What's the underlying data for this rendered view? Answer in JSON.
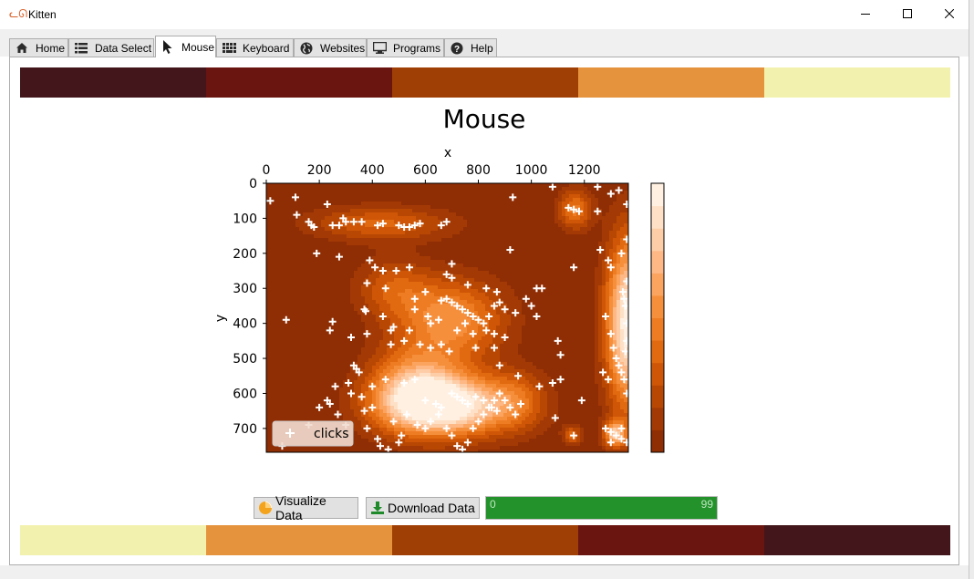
{
  "window": {
    "title": "Kitten",
    "minimize_label": "minimize",
    "maximize_label": "maximize",
    "close_label": "close"
  },
  "tabs": [
    {
      "label": "Home",
      "icon": "home-icon",
      "active": false
    },
    {
      "label": "Data Select",
      "icon": "list-icon",
      "active": false
    },
    {
      "label": "Mouse",
      "icon": "cursor-icon",
      "active": true
    },
    {
      "label": "Keyboard",
      "icon": "keyboard-icon",
      "active": false
    },
    {
      "label": "Websites",
      "icon": "globe-icon",
      "active": false
    },
    {
      "label": "Programs",
      "icon": "monitor-icon",
      "active": false
    },
    {
      "label": "Help",
      "icon": "help-icon",
      "active": false
    }
  ],
  "palette": {
    "top": [
      "#42161a",
      "#6b1510",
      "#a03f05",
      "#e5933d",
      "#f2f2ae"
    ],
    "bottom": [
      "#f2f2ae",
      "#e5933d",
      "#a03f05",
      "#6b1510",
      "#42161a"
    ]
  },
  "chart_data": {
    "type": "scatter",
    "title": "Mouse",
    "xlabel": "x",
    "ylabel": "y",
    "x_axis_position": "top",
    "y_axis_inverted": true,
    "xlim": [
      0,
      1366
    ],
    "ylim": [
      768,
      0
    ],
    "xticks": [
      0,
      200,
      400,
      600,
      800,
      1000,
      1200
    ],
    "yticks": [
      0,
      100,
      200,
      300,
      400,
      500,
      600,
      700
    ],
    "legend": {
      "label": "clicks",
      "placement": "bottom-left"
    },
    "background": "kde-density",
    "colorbar": true,
    "colormap": [
      "#8f2d04",
      "#a33a05",
      "#b84704",
      "#cf5606",
      "#e1690f",
      "#ee7c23",
      "#f68f3c",
      "#fba45f",
      "#fdb886",
      "#fdcda8",
      "#fee0c6",
      "#fff0e2"
    ],
    "density_peaks": [
      {
        "x": 680,
        "y": 635,
        "weight": 1.0,
        "spread_x": 170,
        "spread_y": 60
      },
      {
        "x": 560,
        "y": 580,
        "weight": 0.55,
        "spread_x": 120,
        "spread_y": 80
      },
      {
        "x": 1366,
        "y": 400,
        "weight": 1.0,
        "spread_x": 60,
        "spread_y": 170
      },
      {
        "x": 700,
        "y": 390,
        "weight": 0.55,
        "spread_x": 140,
        "spread_y": 80
      },
      {
        "x": 430,
        "y": 115,
        "weight": 0.35,
        "spread_x": 190,
        "spread_y": 35
      },
      {
        "x": 1165,
        "y": 75,
        "weight": 0.45,
        "spread_x": 45,
        "spread_y": 40
      },
      {
        "x": 1315,
        "y": 715,
        "weight": 0.7,
        "spread_x": 30,
        "spread_y": 25
      },
      {
        "x": 1155,
        "y": 720,
        "weight": 0.35,
        "spread_x": 25,
        "spread_y": 20
      },
      {
        "x": 950,
        "y": 620,
        "weight": 0.25,
        "spread_x": 80,
        "spread_y": 60
      },
      {
        "x": 480,
        "y": 300,
        "weight": 0.3,
        "spread_x": 100,
        "spread_y": 60
      }
    ],
    "series": [
      {
        "name": "clicks",
        "points": [
          [
            15,
            50
          ],
          [
            110,
            40
          ],
          [
            115,
            90
          ],
          [
            160,
            110
          ],
          [
            170,
            120
          ],
          [
            180,
            125
          ],
          [
            230,
            60
          ],
          [
            250,
            120
          ],
          [
            275,
            120
          ],
          [
            290,
            100
          ],
          [
            300,
            110
          ],
          [
            330,
            110
          ],
          [
            360,
            110
          ],
          [
            420,
            120
          ],
          [
            440,
            115
          ],
          [
            500,
            120
          ],
          [
            520,
            125
          ],
          [
            540,
            125
          ],
          [
            560,
            120
          ],
          [
            580,
            115
          ],
          [
            660,
            120
          ],
          [
            680,
            110
          ],
          [
            930,
            40
          ],
          [
            1080,
            10
          ],
          [
            1140,
            70
          ],
          [
            1160,
            75
          ],
          [
            1180,
            80
          ],
          [
            1250,
            80
          ],
          [
            1300,
            30
          ],
          [
            1250,
            10
          ],
          [
            1330,
            20
          ],
          [
            1360,
            60
          ],
          [
            190,
            200
          ],
          [
            275,
            210
          ],
          [
            390,
            220
          ],
          [
            410,
            240
          ],
          [
            440,
            250
          ],
          [
            490,
            250
          ],
          [
            540,
            240
          ],
          [
            380,
            285
          ],
          [
            450,
            300
          ],
          [
            700,
            230
          ],
          [
            680,
            260
          ],
          [
            700,
            270
          ],
          [
            760,
            290
          ],
          [
            830,
            300
          ],
          [
            870,
            310
          ],
          [
            1020,
            300
          ],
          [
            1040,
            300
          ],
          [
            920,
            190
          ],
          [
            1160,
            240
          ],
          [
            1260,
            190
          ],
          [
            1290,
            220
          ],
          [
            1300,
            240
          ],
          [
            1340,
            200
          ],
          [
            1360,
            160
          ],
          [
            75,
            390
          ],
          [
            250,
            395
          ],
          [
            240,
            420
          ],
          [
            320,
            440
          ],
          [
            370,
            360
          ],
          [
            375,
            365
          ],
          [
            380,
            430
          ],
          [
            440,
            380
          ],
          [
            470,
            420
          ],
          [
            480,
            410
          ],
          [
            540,
            420
          ],
          [
            560,
            330
          ],
          [
            600,
            310
          ],
          [
            560,
            360
          ],
          [
            610,
            380
          ],
          [
            620,
            400
          ],
          [
            650,
            390
          ],
          [
            660,
            335
          ],
          [
            680,
            330
          ],
          [
            700,
            340
          ],
          [
            720,
            350
          ],
          [
            740,
            360
          ],
          [
            760,
            370
          ],
          [
            780,
            380
          ],
          [
            800,
            390
          ],
          [
            820,
            400
          ],
          [
            840,
            380
          ],
          [
            860,
            350
          ],
          [
            880,
            340
          ],
          [
            900,
            360
          ],
          [
            940,
            370
          ],
          [
            980,
            330
          ],
          [
            1000,
            350
          ],
          [
            1020,
            380
          ],
          [
            830,
            420
          ],
          [
            860,
            430
          ],
          [
            900,
            440
          ],
          [
            860,
            470
          ],
          [
            790,
            470
          ],
          [
            780,
            430
          ],
          [
            750,
            400
          ],
          [
            720,
            420
          ],
          [
            660,
            460
          ],
          [
            690,
            480
          ],
          [
            620,
            470
          ],
          [
            580,
            460
          ],
          [
            520,
            450
          ],
          [
            470,
            460
          ],
          [
            1100,
            450
          ],
          [
            1110,
            490
          ],
          [
            1280,
            380
          ],
          [
            1300,
            430
          ],
          [
            1310,
            470
          ],
          [
            1320,
            500
          ],
          [
            1330,
            520
          ],
          [
            1340,
            540
          ],
          [
            1350,
            560
          ],
          [
            1360,
            600
          ],
          [
            1290,
            560
          ],
          [
            1270,
            540
          ],
          [
            330,
            520
          ],
          [
            340,
            530
          ],
          [
            350,
            540
          ],
          [
            310,
            570
          ],
          [
            240,
            630
          ],
          [
            270,
            660
          ],
          [
            300,
            690
          ],
          [
            320,
            600
          ],
          [
            360,
            610
          ],
          [
            400,
            640
          ],
          [
            370,
            650
          ],
          [
            380,
            700
          ],
          [
            420,
            730
          ],
          [
            430,
            750
          ],
          [
            460,
            760
          ],
          [
            500,
            740
          ],
          [
            510,
            720
          ],
          [
            480,
            680
          ],
          [
            530,
            660
          ],
          [
            570,
            690
          ],
          [
            600,
            700
          ],
          [
            620,
            680
          ],
          [
            650,
            660
          ],
          [
            680,
            700
          ],
          [
            700,
            720
          ],
          [
            720,
            750
          ],
          [
            740,
            760
          ],
          [
            760,
            740
          ],
          [
            780,
            700
          ],
          [
            800,
            680
          ],
          [
            820,
            660
          ],
          [
            840,
            640
          ],
          [
            860,
            620
          ],
          [
            880,
            600
          ],
          [
            900,
            620
          ],
          [
            920,
            640
          ],
          [
            940,
            660
          ],
          [
            960,
            630
          ],
          [
            880,
            520
          ],
          [
            950,
            550
          ],
          [
            1080,
            570
          ],
          [
            1110,
            560
          ],
          [
            1030,
            580
          ],
          [
            1090,
            670
          ],
          [
            1190,
            620
          ],
          [
            1160,
            720
          ],
          [
            1280,
            700
          ],
          [
            1300,
            710
          ],
          [
            1320,
            720
          ],
          [
            1340,
            730
          ],
          [
            1360,
            740
          ],
          [
            1300,
            740
          ],
          [
            1340,
            700
          ],
          [
            60,
            750
          ],
          [
            160,
            690
          ],
          [
            200,
            640
          ],
          [
            230,
            620
          ],
          [
            260,
            580
          ],
          [
            400,
            580
          ],
          [
            450,
            560
          ],
          [
            520,
            570
          ],
          [
            560,
            560
          ],
          [
            600,
            620
          ],
          [
            640,
            630
          ],
          [
            660,
            640
          ],
          [
            700,
            600
          ],
          [
            720,
            610
          ],
          [
            740,
            620
          ],
          [
            760,
            630
          ],
          [
            790,
            610
          ],
          [
            820,
            620
          ],
          [
            850,
            640
          ],
          [
            870,
            650
          ],
          [
            1360,
            400
          ],
          [
            1355,
            350
          ],
          [
            1350,
            330
          ],
          [
            1345,
            310
          ],
          [
            1360,
            280
          ],
          [
            1360,
            450
          ],
          [
            1355,
            480
          ]
        ]
      }
    ]
  },
  "buttons": {
    "visualize_label": "Visualize Data",
    "download_label": "Download Data"
  },
  "progress": {
    "min_label": "0",
    "max_label": "99",
    "value_fraction": 1.0,
    "color": "#23922a"
  }
}
